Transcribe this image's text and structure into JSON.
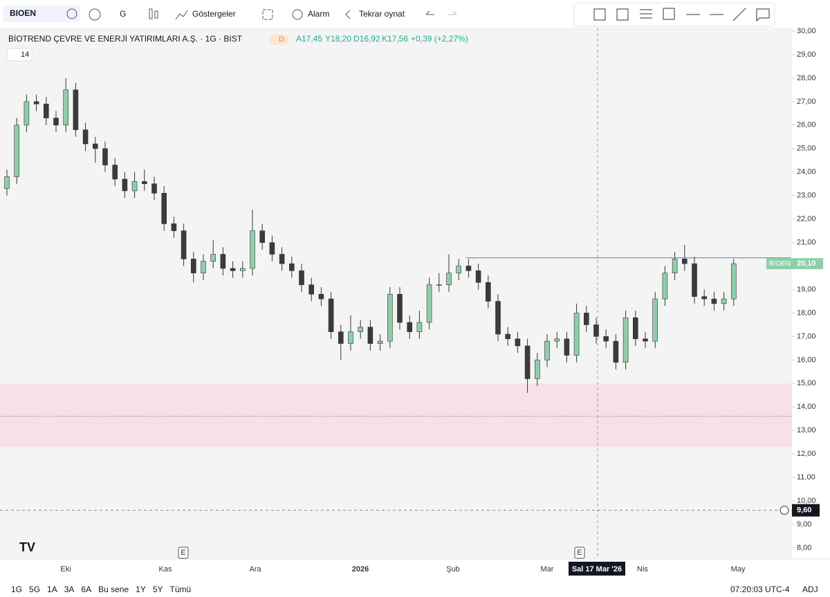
{
  "toolbar": {
    "symbol": "BIOEN",
    "interval": "G",
    "indicators": "Göstergeler",
    "alert": "Alarm",
    "replay": "Tekrar oynat"
  },
  "legend": {
    "title": "BİOTREND ÇEVRE VE ENERJİ YATIRIMLARI A.Ş. · 1G · BIST",
    "badge": "D",
    "open": "A17,45",
    "high": "Y18,20",
    "low": "D16,92",
    "close": "K17,56",
    "change": "+0,39 (+2,27%)",
    "study": "14"
  },
  "chart_data": {
    "type": "candlestick",
    "open": [
      23.3,
      23.8,
      26.0,
      27.0,
      26.9,
      26.3,
      26.0,
      27.5,
      25.8,
      25.2,
      25.0,
      24.3,
      23.7,
      23.2,
      23.6,
      23.5,
      23.1,
      21.8,
      21.5,
      20.3,
      19.7,
      20.2,
      20.5,
      19.9,
      19.8,
      19.9,
      21.5,
      21.0,
      20.5,
      20.1,
      19.8,
      19.2,
      18.8,
      18.6,
      17.2,
      16.7,
      17.2,
      17.4,
      16.7,
      16.8,
      18.8,
      17.6,
      17.2,
      17.6,
      19.2,
      19.2,
      19.7,
      20.0,
      19.8,
      19.3,
      18.5,
      17.1,
      16.9,
      16.6,
      15.2,
      16.0,
      16.8,
      16.9,
      16.2,
      18.0,
      17.5,
      17.0,
      16.8,
      15.9,
      17.8,
      16.9,
      16.8,
      18.6,
      19.7,
      20.3,
      20.1,
      18.7,
      18.6,
      18.4,
      18.6
    ],
    "high": [
      24.1,
      26.3,
      27.3,
      27.3,
      27.2,
      26.6,
      28.0,
      27.8,
      26.1,
      25.5,
      25.3,
      24.6,
      24.0,
      24.0,
      24.1,
      23.8,
      23.4,
      22.1,
      21.8,
      20.6,
      20.5,
      21.1,
      20.8,
      20.2,
      20.2,
      22.4,
      21.8,
      21.3,
      20.8,
      20.4,
      20.1,
      19.5,
      19.1,
      18.9,
      17.5,
      17.9,
      17.7,
      17.7,
      17.1,
      19.1,
      19.1,
      17.9,
      18.1,
      19.5,
      19.7,
      20.5,
      20.3,
      20.3,
      20.1,
      19.6,
      18.8,
      17.4,
      17.2,
      16.9,
      16.3,
      17.1,
      17.2,
      17.2,
      18.4,
      18.3,
      17.8,
      17.3,
      17.1,
      18.1,
      18.1,
      17.2,
      18.9,
      20.0,
      20.6,
      20.9,
      20.4,
      19.0,
      18.9,
      18.9,
      20.3
    ],
    "low": [
      23.0,
      23.5,
      25.7,
      26.6,
      26.0,
      25.7,
      25.7,
      25.5,
      24.9,
      24.4,
      24.0,
      23.4,
      22.9,
      22.9,
      23.2,
      22.8,
      21.5,
      21.2,
      20.0,
      19.3,
      19.4,
      19.9,
      19.6,
      19.5,
      19.5,
      19.6,
      20.7,
      20.2,
      19.8,
      19.5,
      18.9,
      18.5,
      18.3,
      16.9,
      16.0,
      16.4,
      16.9,
      16.4,
      16.4,
      16.5,
      17.3,
      16.9,
      16.9,
      17.3,
      18.9,
      18.9,
      19.4,
      19.5,
      19.0,
      18.2,
      16.8,
      16.6,
      16.3,
      14.6,
      14.9,
      15.7,
      16.5,
      15.9,
      15.9,
      17.2,
      16.7,
      16.5,
      15.6,
      15.6,
      16.6,
      16.5,
      16.5,
      18.3,
      19.4,
      19.8,
      18.4,
      18.3,
      18.1,
      18.1,
      18.3
    ],
    "close": [
      23.8,
      26.0,
      27.0,
      26.9,
      26.3,
      26.0,
      27.5,
      25.8,
      25.2,
      25.0,
      24.3,
      23.7,
      23.2,
      23.6,
      23.5,
      23.1,
      21.8,
      21.5,
      20.3,
      19.7,
      20.2,
      20.5,
      19.9,
      19.8,
      19.9,
      21.5,
      21.0,
      20.5,
      20.1,
      19.8,
      19.2,
      18.8,
      18.6,
      17.2,
      16.7,
      17.2,
      17.4,
      16.7,
      16.8,
      18.8,
      17.6,
      17.2,
      17.6,
      19.2,
      19.2,
      19.7,
      20.0,
      19.8,
      19.3,
      18.5,
      17.1,
      16.9,
      16.6,
      15.2,
      16.0,
      16.8,
      16.9,
      16.2,
      18.0,
      17.5,
      17.0,
      16.8,
      15.9,
      17.8,
      16.9,
      16.8,
      18.6,
      19.7,
      20.3,
      20.1,
      18.7,
      18.6,
      18.4,
      18.6,
      20.1
    ],
    "up_color": "#8ccfa9",
    "down_color": "#3b3b3b",
    "ylim": [
      8,
      30
    ],
    "yticks": [
      {
        "value": 30,
        "label": "30,00"
      },
      {
        "value": 29,
        "label": "29,00"
      },
      {
        "value": 28,
        "label": "28,00"
      },
      {
        "value": 27,
        "label": "27,00"
      },
      {
        "value": 26,
        "label": "26,00"
      },
      {
        "value": 25,
        "label": "25,00"
      },
      {
        "value": 24,
        "label": "24,00"
      },
      {
        "value": 23,
        "label": "23,00"
      },
      {
        "value": 22,
        "label": "22,00"
      },
      {
        "value": 21,
        "label": "21,00"
      },
      {
        "value": 20,
        "label": "20,00"
      },
      {
        "value": 19,
        "label": "19,00"
      },
      {
        "value": 18,
        "label": "18,00"
      },
      {
        "value": 17,
        "label": "17,00"
      },
      {
        "value": 16,
        "label": "16,00"
      },
      {
        "value": 15,
        "label": "15,00"
      },
      {
        "value": 14,
        "label": "14,00"
      },
      {
        "value": 13,
        "label": "13,00"
      },
      {
        "value": 12,
        "label": "12,00"
      },
      {
        "value": 11,
        "label": "11,00"
      },
      {
        "value": 10,
        "label": "10,00"
      },
      {
        "value": 9,
        "label": "9,00"
      },
      {
        "value": 8,
        "label": "8,00"
      }
    ],
    "months": [
      "Eki",
      "Kas",
      "Ara",
      "2026",
      "Şub",
      "Mar",
      "Nis",
      "May"
    ],
    "hline": {
      "value": 20.35,
      "color": "#6f93d8"
    },
    "zone": {
      "low": 12.3,
      "high": 15.0,
      "mid": 13.6,
      "color": "#f6e1e8"
    },
    "last_price": {
      "name": "BIOEN",
      "value": 20.1,
      "label": "20,10"
    },
    "cursor": {
      "value": 9.6,
      "label": "9,60",
      "date": "Sal 17 Mar '26"
    },
    "events": [
      "E",
      "E"
    ]
  },
  "footer": {
    "ranges": [
      "1G",
      "5G",
      "1A",
      "3A",
      "6A",
      "Bu sene",
      "1Y",
      "5Y",
      "Tümü"
    ],
    "clock": "07:20:03 UTC-4",
    "adj": "ADJ"
  }
}
